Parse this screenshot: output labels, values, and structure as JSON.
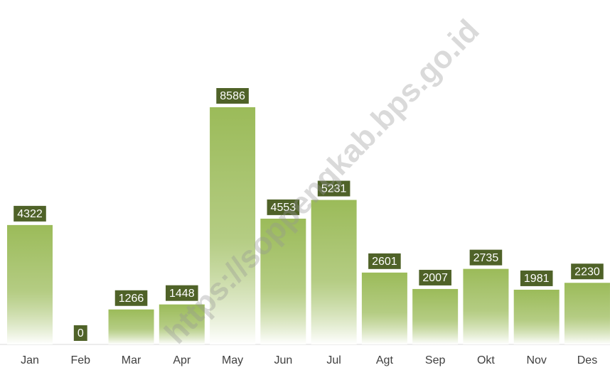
{
  "chart_data": {
    "type": "bar",
    "categories": [
      "Jan",
      "Feb",
      "Mar",
      "Apr",
      "May",
      "Jun",
      "Jul",
      "Agt",
      "Sep",
      "Okt",
      "Nov",
      "Des"
    ],
    "values": [
      4322,
      0,
      1266,
      1448,
      8586,
      4553,
      5231,
      2601,
      2007,
      2735,
      1981,
      2230
    ],
    "color": "#9bbb59",
    "label_color": "#4f6228",
    "ylim": [
      0,
      10000
    ],
    "watermark": "https://soppengkab.bps.go.id"
  }
}
